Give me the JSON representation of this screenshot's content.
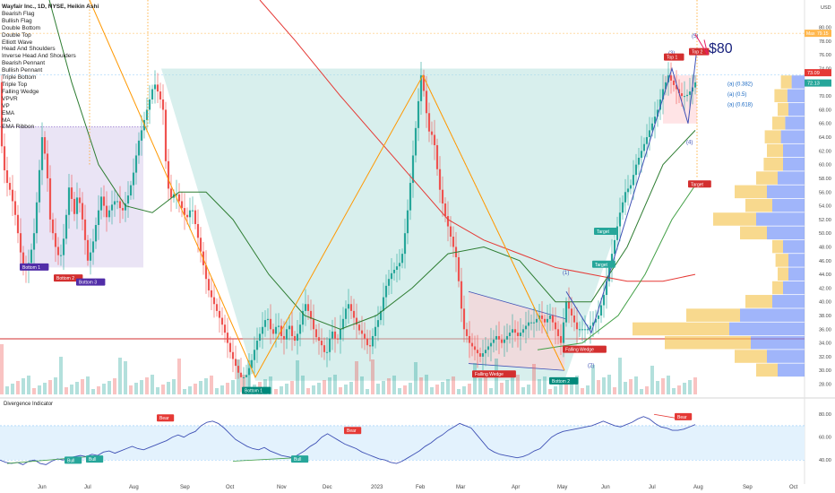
{
  "title": "Wayfair Inc., 1D, NYSE, Heikin Ashi",
  "indicators": [
    "Bearish Flag",
    "Bullish Flag",
    "Double Bottom",
    "Double Top",
    "Elliott Wave",
    "Head And Shoulders",
    "Inverse Head And Shoulders",
    "Bearish Pennant",
    "Bullish Pennant",
    "Triple Bottom",
    "Triple Top",
    "Falling Wedge",
    "VPVR",
    "VP",
    "EMA",
    "MA",
    "EMA Ribbon"
  ],
  "currency": "USD",
  "chart_data": {
    "type": "candlestick",
    "title": "Wayfair Inc., 1D, NYSE, Heikin Ashi",
    "x_ticks": [
      "Jun",
      "Jul",
      "Aug",
      "Sep",
      "Oct",
      "Nov",
      "Dec",
      "2023",
      "Feb",
      "Mar",
      "Apr",
      "May",
      "Jun",
      "Jul",
      "Aug",
      "Sep",
      "Oct"
    ],
    "price_ticks": [
      28,
      30,
      32,
      34,
      36,
      38,
      40,
      42,
      44,
      46,
      48,
      50,
      52,
      54,
      56,
      58,
      60,
      62,
      64,
      66,
      68,
      70,
      72,
      74,
      76,
      78,
      80
    ],
    "price_range": [
      26.5,
      84
    ],
    "last_price_labels": [
      "73.09",
      "72.13"
    ],
    "price_tags": [
      "Max",
      "79.15"
    ],
    "close_path": [
      [
        0,
        65
      ],
      [
        6,
        58
      ],
      [
        12,
        56
      ],
      [
        18,
        52
      ],
      [
        22,
        48
      ],
      [
        27,
        44
      ],
      [
        33,
        46
      ],
      [
        38,
        50
      ],
      [
        42,
        56
      ],
      [
        47,
        64
      ],
      [
        52,
        60
      ],
      [
        56,
        52
      ],
      [
        62,
        48
      ],
      [
        67,
        46
      ],
      [
        72,
        50
      ],
      [
        78,
        58
      ],
      [
        82,
        52
      ],
      [
        87,
        56
      ],
      [
        92,
        52
      ],
      [
        98,
        46
      ],
      [
        103,
        48
      ],
      [
        108,
        52
      ],
      [
        114,
        56
      ],
      [
        118,
        52
      ],
      [
        124,
        54
      ],
      [
        130,
        55
      ],
      [
        136,
        53
      ],
      [
        142,
        55
      ],
      [
        148,
        58
      ],
      [
        154,
        63
      ],
      [
        160,
        66
      ],
      [
        166,
        69
      ],
      [
        172,
        72
      ],
      [
        178,
        70
      ],
      [
        182,
        68
      ],
      [
        186,
        58
      ],
      [
        190,
        55
      ],
      [
        196,
        56
      ],
      [
        202,
        54
      ],
      [
        208,
        52
      ],
      [
        214,
        54
      ],
      [
        220,
        50
      ],
      [
        226,
        46
      ],
      [
        232,
        42
      ],
      [
        238,
        40
      ],
      [
        244,
        38
      ],
      [
        250,
        36
      ],
      [
        256,
        33
      ],
      [
        262,
        31
      ],
      [
        268,
        29
      ],
      [
        274,
        29
      ],
      [
        280,
        31
      ],
      [
        286,
        34
      ],
      [
        292,
        36
      ],
      [
        298,
        38
      ],
      [
        304,
        35
      ],
      [
        310,
        37
      ],
      [
        316,
        34
      ],
      [
        322,
        37
      ],
      [
        328,
        34
      ],
      [
        334,
        36
      ],
      [
        340,
        40
      ],
      [
        346,
        38
      ],
      [
        352,
        35
      ],
      [
        358,
        34
      ],
      [
        364,
        32
      ],
      [
        370,
        36
      ],
      [
        376,
        34
      ],
      [
        382,
        37
      ],
      [
        388,
        40
      ],
      [
        394,
        38
      ],
      [
        400,
        36
      ],
      [
        406,
        35
      ],
      [
        412,
        33
      ],
      [
        418,
        36
      ],
      [
        424,
        38
      ],
      [
        430,
        42
      ],
      [
        436,
        44
      ],
      [
        442,
        45
      ],
      [
        448,
        46
      ],
      [
        454,
        52
      ],
      [
        460,
        60
      ],
      [
        466,
        68
      ],
      [
        470,
        73
      ],
      [
        474,
        70
      ],
      [
        478,
        65
      ],
      [
        484,
        64
      ],
      [
        490,
        57
      ],
      [
        496,
        53
      ],
      [
        502,
        50
      ],
      [
        506,
        48
      ],
      [
        510,
        46
      ],
      [
        514,
        40
      ],
      [
        518,
        36
      ],
      [
        524,
        34
      ],
      [
        530,
        33
      ],
      [
        536,
        32
      ],
      [
        542,
        33
      ],
      [
        548,
        34
      ],
      [
        554,
        35
      ],
      [
        560,
        34
      ],
      [
        566,
        35
      ],
      [
        572,
        36
      ],
      [
        578,
        35
      ],
      [
        584,
        36
      ],
      [
        590,
        37
      ],
      [
        596,
        37
      ],
      [
        602,
        38
      ],
      [
        608,
        37
      ],
      [
        614,
        38
      ],
      [
        620,
        36
      ],
      [
        626,
        34
      ],
      [
        632,
        40
      ],
      [
        638,
        38
      ],
      [
        644,
        36
      ],
      [
        650,
        36
      ],
      [
        656,
        36
      ],
      [
        662,
        37
      ],
      [
        668,
        38
      ],
      [
        674,
        41
      ],
      [
        680,
        45
      ],
      [
        686,
        49
      ],
      [
        692,
        53
      ],
      [
        698,
        56
      ],
      [
        704,
        57
      ],
      [
        710,
        60
      ],
      [
        716,
        62
      ],
      [
        722,
        64
      ],
      [
        728,
        66
      ],
      [
        734,
        68
      ],
      [
        740,
        71
      ],
      [
        746,
        73
      ],
      [
        750,
        72
      ],
      [
        755,
        71
      ],
      [
        760,
        70
      ],
      [
        766,
        70
      ],
      [
        772,
        71
      ],
      [
        776,
        72
      ]
    ],
    "moving_averages": [
      {
        "name": "MA 200",
        "color": "#e53935"
      },
      {
        "name": "MA 50",
        "color": "#2e7d32"
      },
      {
        "name": "EMA",
        "color": "#43a047"
      }
    ],
    "pattern_labels": [
      "Bottom 1",
      "Bottom 2",
      "Bottom 3",
      "Bottom 1",
      "Bottom 2",
      "Falling Wedge",
      "Falling Wedge",
      "Top 1",
      "Top 2",
      "Target",
      "Target",
      "Target"
    ],
    "elliott_wave": [
      "(1)",
      "(2)",
      "(3)",
      "(4)",
      "(5)"
    ],
    "fib_targets": [
      "(a) (0.382)",
      "(a) (0.5)",
      "(a) (0.618)"
    ],
    "price_target_text": "$80",
    "oscillator": {
      "name": "Divergence Indicator",
      "ticks": [
        40,
        60,
        80
      ],
      "range": [
        30,
        88
      ],
      "band": [
        40,
        70
      ],
      "values": [
        40,
        38,
        37,
        38,
        36,
        39,
        40,
        37,
        36,
        39,
        41,
        40,
        42,
        43,
        44,
        43,
        45,
        44,
        47,
        48,
        46,
        48,
        50,
        52,
        50,
        49,
        51,
        53,
        55,
        57,
        60,
        62,
        60,
        63,
        65,
        70,
        73,
        74,
        72,
        68,
        63,
        58,
        55,
        52,
        50,
        49,
        51,
        48,
        46,
        44,
        43,
        42,
        45,
        48,
        52,
        55,
        60,
        63,
        60,
        57,
        54,
        52,
        50,
        47,
        45,
        43,
        41,
        40,
        38,
        37,
        39,
        42,
        45,
        48,
        52,
        55,
        59,
        62,
        66,
        69,
        72,
        70,
        68,
        62,
        56,
        50,
        47,
        45,
        44,
        43,
        42,
        43,
        45,
        48,
        50,
        55,
        60,
        63,
        65,
        66,
        67,
        68,
        69,
        70,
        72,
        74,
        72,
        70,
        69,
        71,
        73,
        76,
        78,
        76,
        72,
        69,
        68,
        66,
        66,
        67,
        69,
        71
      ]
    },
    "oscillator_labels": [
      "Bull",
      "Bull",
      "Bull",
      "Bear",
      "Bear",
      "Bear"
    ]
  }
}
